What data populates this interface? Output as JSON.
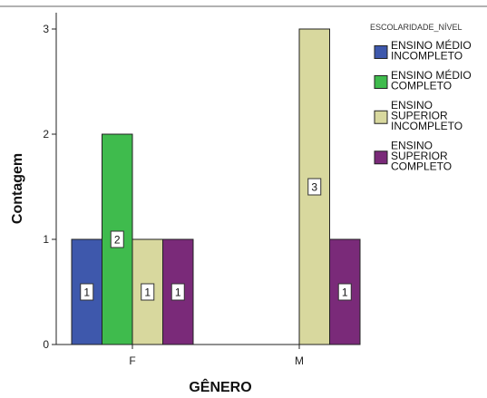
{
  "chart_data": {
    "type": "bar",
    "xlabel": "GÊNERO",
    "ylabel": "Contagem",
    "categories": [
      "F",
      "M"
    ],
    "ylim": [
      0,
      3
    ],
    "yticks": [
      0,
      1,
      2,
      3
    ],
    "grid": false,
    "legend": {
      "title": "ESCOLARIDADE_NÍVEL",
      "placement": "right"
    },
    "series": [
      {
        "name": "ENSINO MÉDIO INCOMPLETO",
        "name_lines": [
          "ENSINO MÉDIO",
          "INCOMPLETO"
        ],
        "color": "#3e58ac",
        "values": [
          1,
          null
        ]
      },
      {
        "name": "ENSINO MÉDIO COMPLETO",
        "name_lines": [
          "ENSINO MÉDIO",
          "COMPLETO"
        ],
        "color": "#3fbb4d",
        "values": [
          2,
          null
        ]
      },
      {
        "name": "ENSINO SUPERIOR INCOMPLETO",
        "name_lines": [
          "ENSINO",
          "SUPERIOR",
          "INCOMPLETO"
        ],
        "color": "#d8d89e",
        "values": [
          1,
          3
        ]
      },
      {
        "name": "ENSINO SUPERIOR COMPLETO",
        "name_lines": [
          "ENSINO",
          "SUPERIOR",
          "COMPLETO"
        ],
        "color": "#7a2a79",
        "values": [
          1,
          1
        ]
      }
    ]
  }
}
